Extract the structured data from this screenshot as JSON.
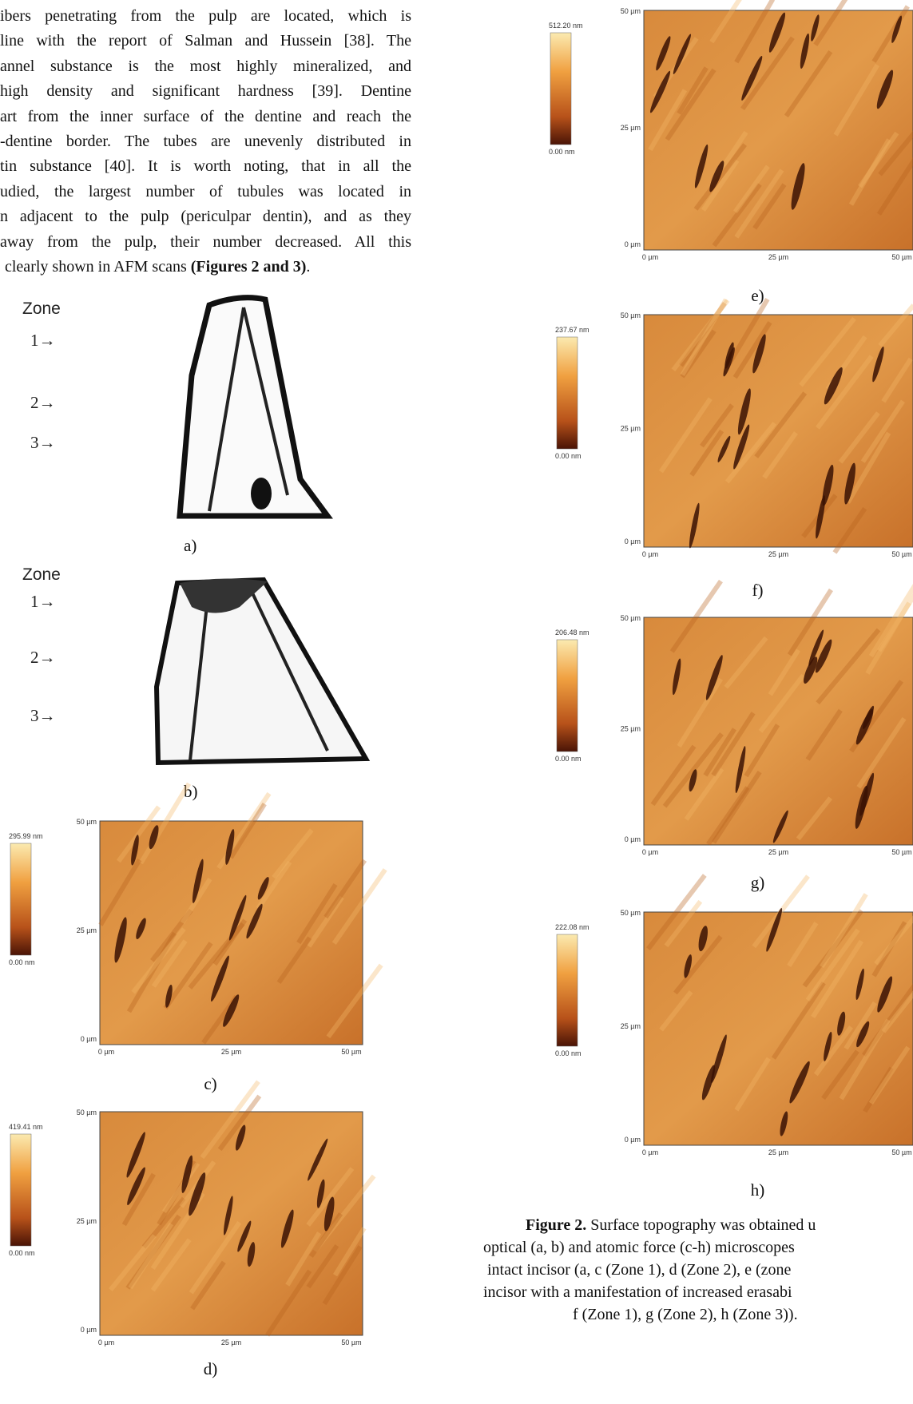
{
  "body_text": {
    "lines": [
      "ibers penetrating from the pulp are located, which is",
      "line with the report of Salman and Hussein [38]. The",
      "annel substance is the most highly mineralized, and",
      "high density and significant hardness [39]. Dentine",
      "art from the inner surface of the dentine and reach the",
      "-dentine border. The tubes are unevenly distributed in",
      "tin substance [40]. It is worth noting, that in all the",
      "udied, the largest number of tubules was located in",
      "n adjacent to the pulp (periculpar dentin), and as they",
      "away from the pulp, their number decreased. All this"
    ],
    "last_line": {
      "text": "clearly shown in AFM scans",
      "bold": "(Figures 2 and 3)",
      "end": "."
    }
  },
  "figure_a": {
    "zone_title": "Zone",
    "zones": [
      "1→",
      "2→",
      "3→"
    ],
    "label": "a)"
  },
  "figure_b": {
    "zone_title": "Zone",
    "zones": [
      "1→",
      "2→",
      "3→"
    ],
    "label": "b)"
  },
  "afm_panels": [
    {
      "scale_max": "295.99 nm",
      "scale_min": "0.00 nm",
      "y_ticks": [
        "50 µm",
        "25 µm",
        "0 µm"
      ],
      "x_ticks": [
        "0 µm",
        "25 µm",
        "50 µm"
      ],
      "label": "c)"
    },
    {
      "scale_max": "419.41 nm",
      "scale_min": "0.00 nm",
      "y_ticks": [
        "50 µm",
        "25 µm",
        "0 µm"
      ],
      "x_ticks": [
        "0 µm",
        "25 µm",
        "50 µm"
      ],
      "label": "d)"
    },
    {
      "scale_max": "512.20 nm",
      "scale_min": "0.00 nm",
      "y_ticks": [
        "50 µm",
        "25 µm",
        "0 µm"
      ],
      "x_ticks": [
        "0 µm",
        "25 µm",
        "50 µm"
      ],
      "label": "e)"
    },
    {
      "scale_max": "237.67 nm",
      "scale_min": "0.00 nm",
      "y_ticks": [
        "50 µm",
        "25 µm",
        "0 µm"
      ],
      "x_ticks": [
        "0 µm",
        "25 µm",
        "50 µm"
      ],
      "label": "f)"
    },
    {
      "scale_max": "206.48 nm",
      "scale_min": "0.00 nm",
      "y_ticks": [
        "50 µm",
        "25 µm",
        "0 µm"
      ],
      "x_ticks": [
        "0 µm",
        "25 µm",
        "50 µm"
      ],
      "label": "g)"
    },
    {
      "scale_max": "222.08 nm",
      "scale_min": "0.00 nm",
      "y_ticks": [
        "50 µm",
        "25 µm",
        "0 µm"
      ],
      "x_ticks": [
        "0 µm",
        "25 µm",
        "50 µm"
      ],
      "label": "h)"
    }
  ],
  "caption": {
    "label": "Figure 2.",
    "lines": [
      "Surface topography was obtained u",
      "optical (a, b) and atomic force (c-h) microscopes",
      "intact incisor (a, c (Zone 1), d (Zone 2), e (zone",
      "incisor with a manifestation of increased erasabi",
      "f (Zone 1), g (Zone 2), h (Zone 3))."
    ]
  }
}
